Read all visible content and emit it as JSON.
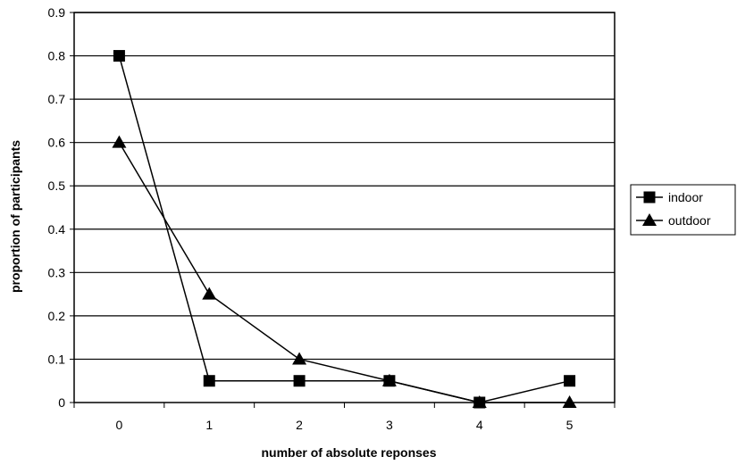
{
  "chart_data": {
    "type": "line",
    "title": "",
    "xlabel": "number of absolute reponses",
    "ylabel": "proportion of participants",
    "categories": [
      "0",
      "1",
      "2",
      "3",
      "4",
      "5"
    ],
    "ylim": [
      0,
      0.9
    ],
    "yticks": [
      "0",
      "0.1",
      "0.2",
      "0.3",
      "0.4",
      "0.5",
      "0.6",
      "0.7",
      "0.8",
      "0.9"
    ],
    "grid": "horizontal",
    "legend_position": "right",
    "series": [
      {
        "name": "indoor",
        "marker": "square",
        "values": [
          0.8,
          0.05,
          0.05,
          0.05,
          0,
          0.05
        ]
      },
      {
        "name": "outdoor",
        "marker": "triangle",
        "values": [
          0.6,
          0.25,
          0.1,
          0.05,
          0,
          0
        ]
      }
    ]
  }
}
